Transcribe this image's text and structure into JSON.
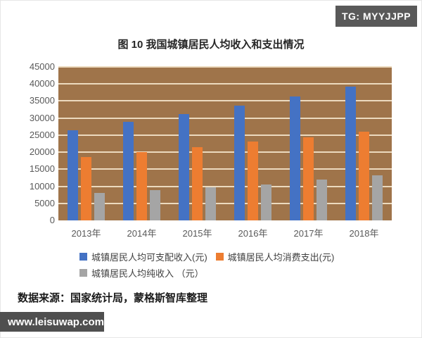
{
  "page": {
    "tg_badge": "TG: MYYJJPP",
    "source_note": "数据来源：国家统计局，蒙格斯智库整理",
    "watermark": "www.leisuwap.com"
  },
  "chart_data": {
    "type": "bar",
    "title": "图 10 我国城镇居民人均收入和支出情况",
    "categories": [
      "2013年",
      "2014年",
      "2015年",
      "2016年",
      "2017年",
      "2018年"
    ],
    "series": [
      {
        "name": "城镇居民人均可支配收入(元)",
        "color": "#4472C4",
        "values": [
          26467,
          28844,
          31195,
          33616,
          36396,
          39251
        ]
      },
      {
        "name": "城镇居民人均消费支出(元)",
        "color": "#ED7D31",
        "values": [
          18488,
          19968,
          21392,
          23079,
          24445,
          26112
        ]
      },
      {
        "name": "城镇居民人均纯收入 （元）",
        "color": "#A5A5A5",
        "values": [
          7979,
          8876,
          9803,
          10537,
          11951,
          13139
        ]
      }
    ],
    "xlabel": "",
    "ylabel": "",
    "ylim": [
      0,
      45000
    ],
    "ytick_step": 5000,
    "grid": true,
    "legend_position": "bottom",
    "plot_bg_color": "#9F744A",
    "gridline_color": "#ECDABE",
    "axis_label_color": "#595959"
  }
}
